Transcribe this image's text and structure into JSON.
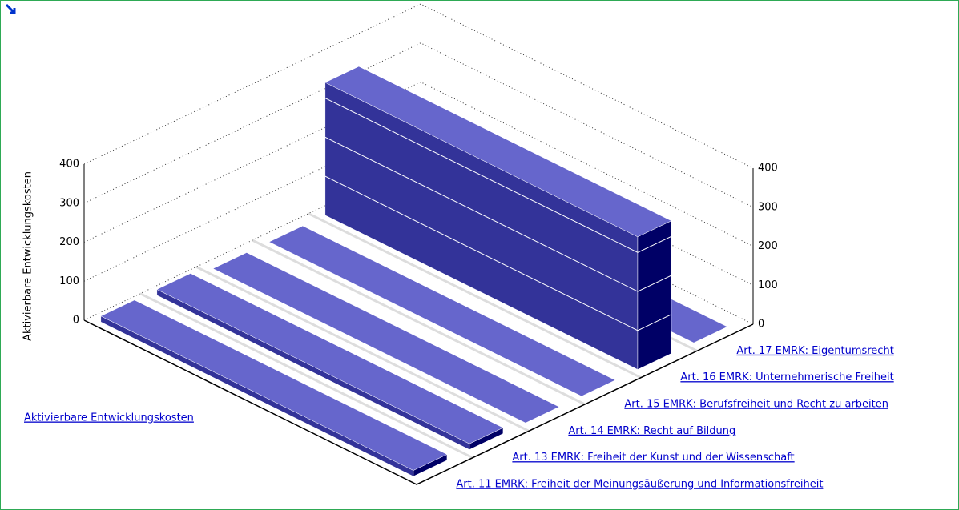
{
  "chart_data": {
    "type": "bar3d",
    "y_label": "Aktivierbare Entwicklungskosten",
    "categories": [
      "Art. 11 EMRK: Freiheit der Meinungsäußerung und Informationsfreiheit",
      "Art. 13 EMRK: Freiheit der Kunst und der Wissenschaft",
      "Art. 14 EMRK: Recht auf Bildung",
      "Art. 15 EMRK: Berufsfreiheit und Recht zu arbeiten",
      "Art. 16 EMRK: Unternehmerische Freiheit",
      "Art. 17 EMRK: Eigentumsrecht"
    ],
    "series": [
      {
        "name": "Aktivierbare Entwicklungskosten",
        "color": "#6666cc",
        "values": [
          15,
          15,
          0,
          0,
          340,
          0
        ]
      }
    ],
    "ylim": [
      0,
      400
    ],
    "yticks": [
      0,
      100,
      200,
      300,
      400
    ],
    "grid": true
  }
}
